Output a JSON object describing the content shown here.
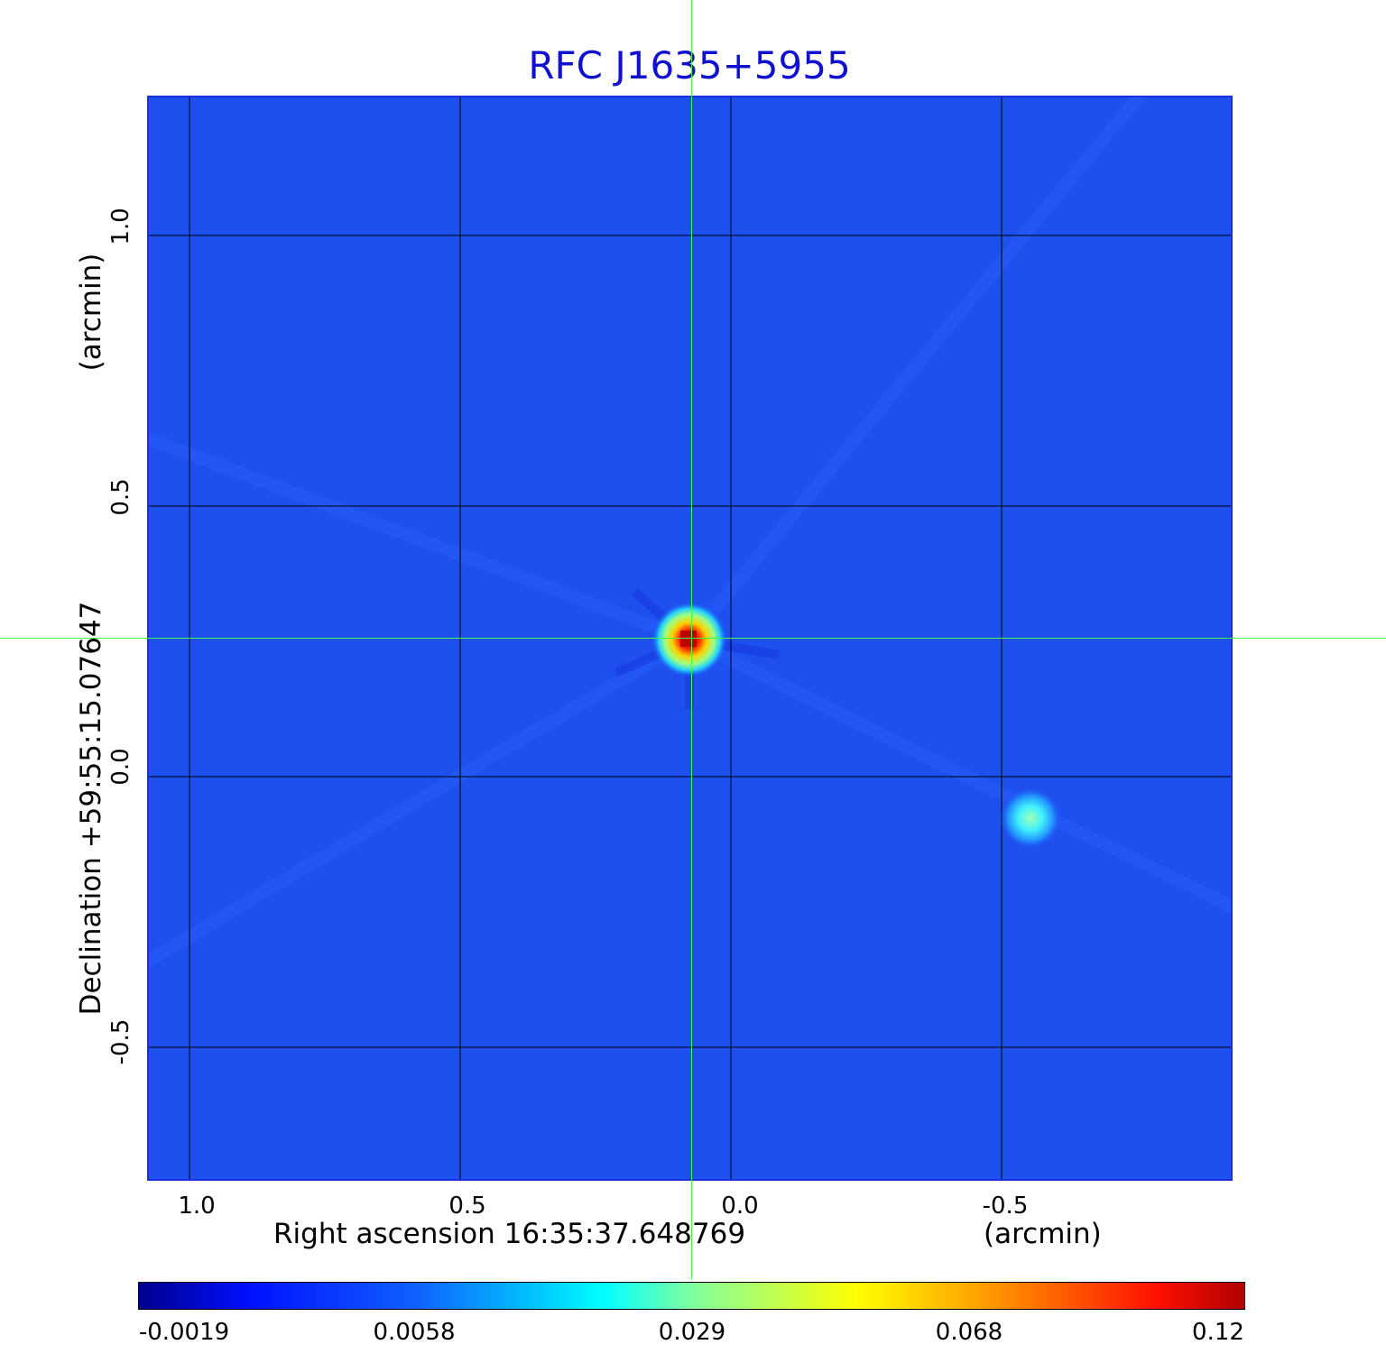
{
  "title": "RFC J1635+5955",
  "xaxis": {
    "label": "Right ascension  16:35:37.648769",
    "unit": "(arcmin)",
    "ticks": [
      "1.0",
      "0.5",
      "0.0",
      "-0.5"
    ]
  },
  "yaxis": {
    "label": "Declination  +59:55:15.07647",
    "unit": "(arcmin)",
    "ticks": [
      "1.0",
      "0.5",
      "0.0",
      "-0.5"
    ]
  },
  "colorbar": {
    "ticks": [
      "-0.0019",
      "0.0058",
      "0.029",
      "0.068",
      "0.12"
    ],
    "colormap": "jet"
  },
  "colors": {
    "background": "#1e50f0",
    "crosshair": "#40ff40",
    "title": "#1010d0"
  }
}
